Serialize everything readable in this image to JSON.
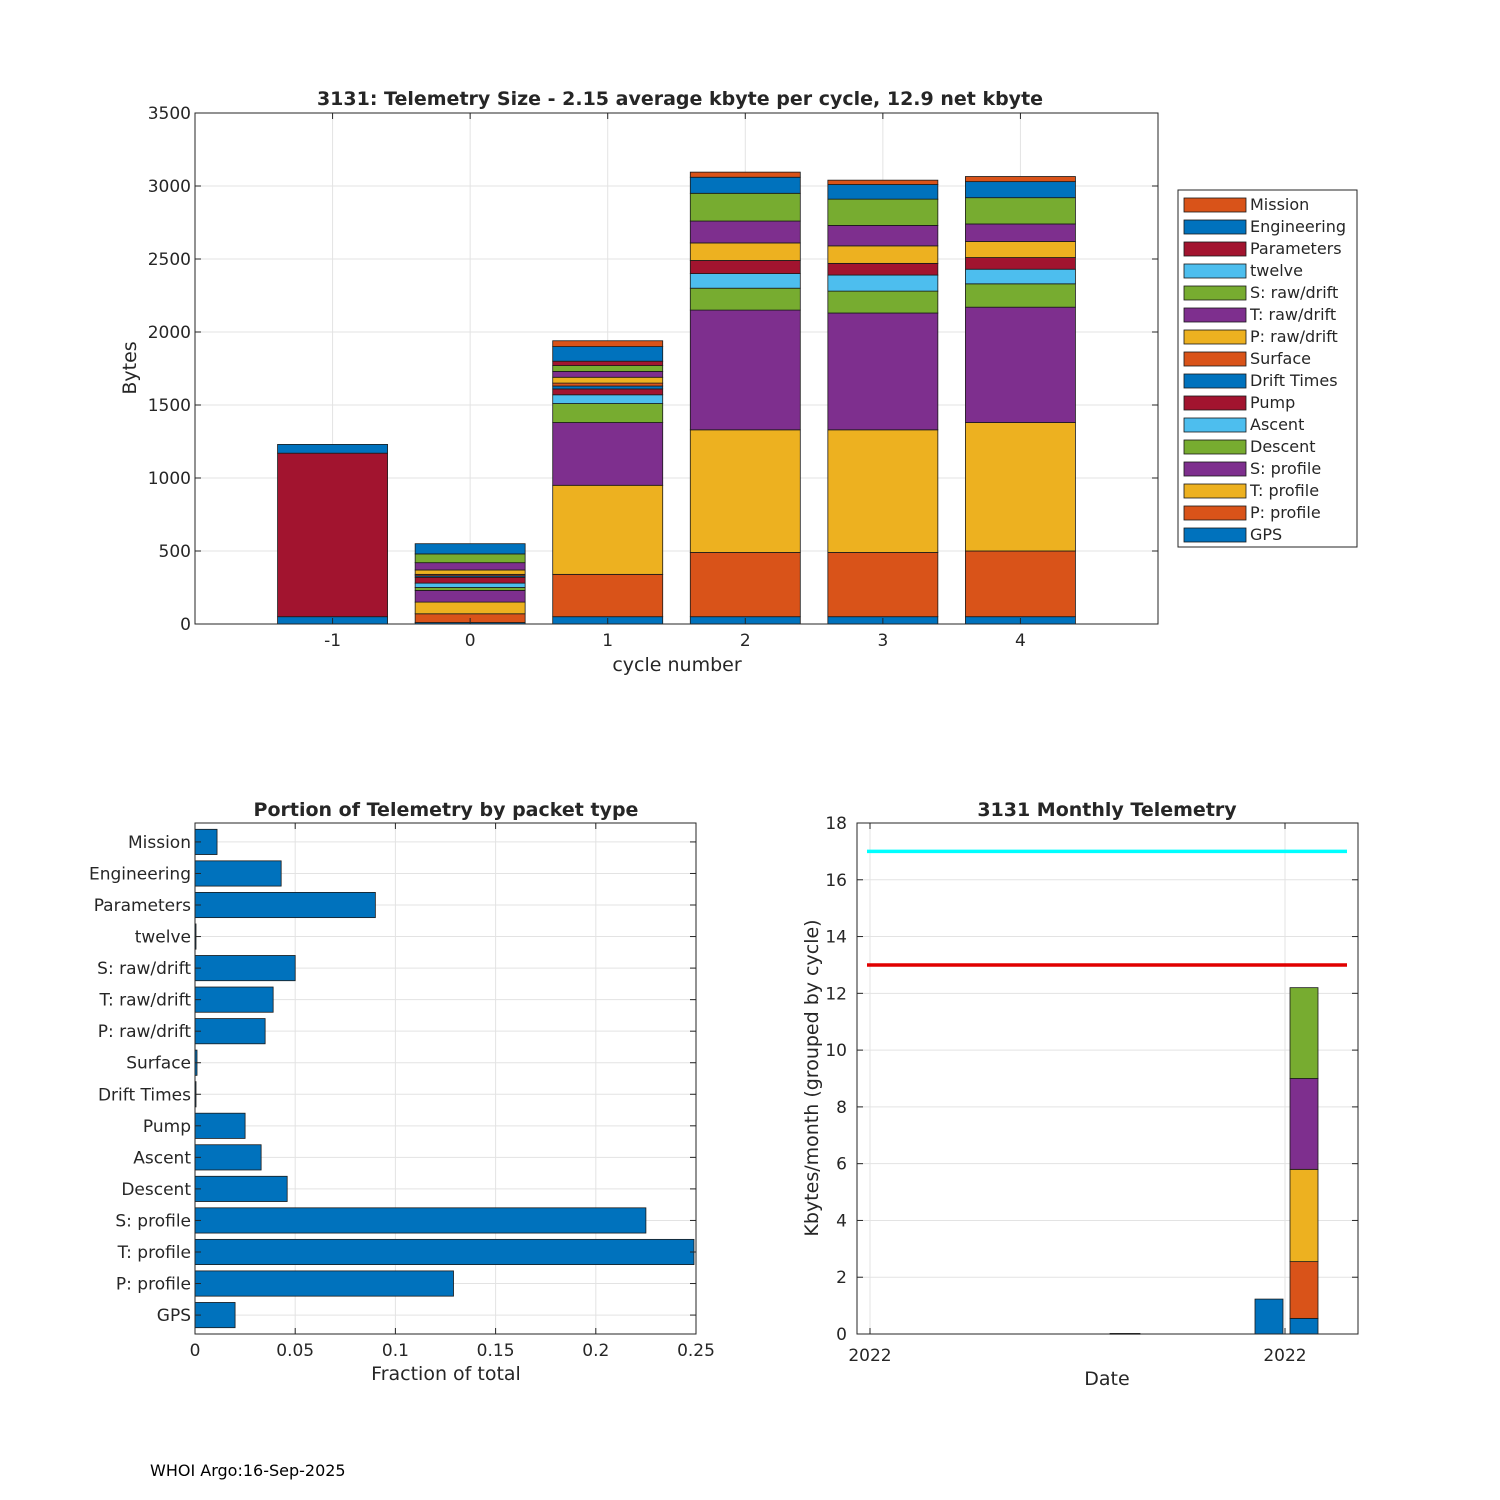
{
  "footer": "WHOI Argo:16-Sep-2025",
  "chart_data": [
    {
      "type": "bar",
      "stacked": true,
      "title": "3131: Telemetry Size - 2.15 average kbyte per cycle,   12.9 net kbyte",
      "xlabel": "cycle number",
      "ylabel": "Bytes",
      "ylim": [
        0,
        3500
      ],
      "yticks": [
        0,
        500,
        1000,
        1500,
        2000,
        2500,
        3000,
        3500
      ],
      "categories": [
        "-1",
        "0",
        "1",
        "2",
        "3",
        "4"
      ],
      "grid": true,
      "legend_position": "right",
      "series": [
        {
          "name": "GPS",
          "color": "#0072BD",
          "values": [
            50,
            10,
            50,
            50,
            50,
            50
          ]
        },
        {
          "name": "P: profile",
          "color": "#D95319",
          "values": [
            0,
            60,
            290,
            440,
            440,
            450
          ]
        },
        {
          "name": "T: profile",
          "color": "#EDB120",
          "values": [
            0,
            80,
            610,
            840,
            840,
            880
          ]
        },
        {
          "name": "S: profile",
          "color": "#7E2F8E",
          "values": [
            0,
            80,
            430,
            820,
            800,
            790
          ]
        },
        {
          "name": "Descent",
          "color": "#77AC30",
          "values": [
            0,
            20,
            130,
            150,
            150,
            160
          ]
        },
        {
          "name": "Ascent",
          "color": "#4DBEEE",
          "values": [
            0,
            30,
            60,
            100,
            110,
            100
          ]
        },
        {
          "name": "Pump",
          "color": "#A2142F",
          "values": [
            0,
            40,
            40,
            90,
            80,
            80
          ]
        },
        {
          "name": "Drift Times",
          "color": "#0072BD",
          "values": [
            0,
            10,
            20,
            0,
            0,
            0
          ]
        },
        {
          "name": "Surface",
          "color": "#D95319",
          "values": [
            0,
            10,
            20,
            0,
            0,
            0
          ]
        },
        {
          "name": "P: raw/drift",
          "color": "#EDB120",
          "values": [
            0,
            30,
            40,
            120,
            120,
            110
          ]
        },
        {
          "name": "T: raw/drift",
          "color": "#7E2F8E",
          "values": [
            0,
            50,
            40,
            150,
            140,
            120
          ]
        },
        {
          "name": "S: raw/drift",
          "color": "#77AC30",
          "values": [
            0,
            60,
            40,
            190,
            180,
            180
          ]
        },
        {
          "name": "twelve",
          "color": "#4DBEEE",
          "values": [
            0,
            0,
            0,
            0,
            0,
            0
          ]
        },
        {
          "name": "Parameters",
          "color": "#A2142F",
          "values": [
            1120,
            0,
            30,
            0,
            0,
            0
          ]
        },
        {
          "name": "Engineering",
          "color": "#0072BD",
          "values": [
            60,
            70,
            100,
            110,
            100,
            110
          ]
        },
        {
          "name": "Mission",
          "color": "#D95319",
          "values": [
            0,
            0,
            40,
            35,
            30,
            35
          ]
        }
      ]
    },
    {
      "type": "bar",
      "orientation": "horizontal",
      "title": "Portion of Telemetry by packet type",
      "xlabel": "Fraction of total",
      "ylabel": "",
      "xlim": [
        0,
        0.25
      ],
      "xticks": [
        0,
        0.05,
        0.1,
        0.15,
        0.2,
        0.25
      ],
      "xtick_labels": [
        "0",
        "0.05",
        "0.1",
        "0.15",
        "0.2",
        "0.25"
      ],
      "grid": true,
      "bar_color": "#0072BD",
      "categories": [
        "GPS",
        "P: profile",
        "T: profile",
        "S: profile",
        "Descent",
        "Ascent",
        "Pump",
        "Drift Times",
        "Surface",
        "P: raw/drift",
        "T: raw/drift",
        "S: raw/drift",
        "twelve",
        "Parameters",
        "Engineering",
        "Mission"
      ],
      "values": [
        0.02,
        0.129,
        0.249,
        0.225,
        0.046,
        0.033,
        0.025,
        0.0005,
        0.001,
        0.035,
        0.039,
        0.05,
        0.0005,
        0.09,
        0.043,
        0.011
      ]
    },
    {
      "type": "bar",
      "stacked": true,
      "title": "3131 Monthly Telemetry",
      "xlabel": "Date",
      "ylabel": "Kbytes/month (grouped by cycle)",
      "ylim": [
        0,
        18
      ],
      "yticks": [
        0,
        2,
        4,
        6,
        8,
        10,
        12,
        14,
        16,
        18
      ],
      "xtick_labels": [
        "2022",
        "2022"
      ],
      "grid": true,
      "reference_lines": [
        {
          "value": 17,
          "color": "#00FFFF"
        },
        {
          "value": 13,
          "color": "#E00000"
        }
      ],
      "groups": [
        {
          "segments": [
            {
              "value": 0.02,
              "color": "#0072BD"
            }
          ]
        },
        {
          "segments": [
            {
              "value": 1.23,
              "color": "#0072BD"
            }
          ]
        },
        {
          "segments": [
            {
              "value": 0.55,
              "color": "#0072BD"
            },
            {
              "value": 2.0,
              "color": "#D95319"
            },
            {
              "value": 3.25,
              "color": "#EDB120"
            },
            {
              "value": 3.2,
              "color": "#7E2F8E"
            },
            {
              "value": 3.2,
              "color": "#77AC30"
            }
          ]
        }
      ]
    }
  ]
}
